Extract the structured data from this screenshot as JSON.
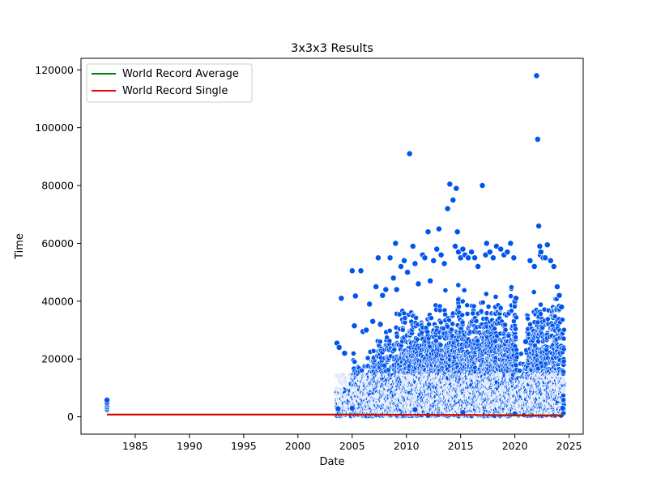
{
  "chart_data": {
    "type": "scatter",
    "title": "3x3x3 Results",
    "xlabel": "Date",
    "ylabel": "Time",
    "xlim": [
      1980.0,
      2026.3
    ],
    "ylim": [
      -6000,
      124000
    ],
    "xticks": [
      1985,
      1990,
      1995,
      2000,
      2005,
      2010,
      2015,
      2020,
      2025
    ],
    "xtick_labels": [
      "1985",
      "1990",
      "1995",
      "2000",
      "2005",
      "2010",
      "2015",
      "2020",
      "2025"
    ],
    "yticks": [
      0,
      20000,
      40000,
      60000,
      80000,
      100000,
      120000
    ],
    "ytick_labels": [
      "0",
      "20000",
      "40000",
      "60000",
      "80000",
      "100000",
      "120000"
    ],
    "grid": false,
    "legend_position": "upper-left",
    "series": [
      {
        "name": "World Record Average",
        "kind": "line",
        "color": "#008000",
        "x": [
          1982.4,
          2003.6,
          2005.0,
          2006.5,
          2007.5,
          2008.2,
          2009.0,
          2010.0,
          2011.5,
          2013.0,
          2014.5,
          2016.0,
          2017.8,
          2019.5,
          2020.5,
          2022.0,
          2023.5,
          2024.5
        ],
        "y": [
          800,
          800,
          800,
          780,
          760,
          750,
          740,
          730,
          720,
          700,
          680,
          650,
          620,
          600,
          580,
          550,
          520,
          500
        ]
      },
      {
        "name": "World Record Single",
        "kind": "line",
        "color": "#e60000",
        "x": [
          1982.4,
          2003.6,
          2005.0,
          2006.0,
          2007.5,
          2008.2,
          2009.5,
          2011.0,
          2013.0,
          2015.0,
          2016.5,
          2018.0,
          2019.5,
          2020.5,
          2023.5,
          2024.5
        ],
        "y": [
          760,
          760,
          760,
          750,
          740,
          730,
          710,
          690,
          670,
          650,
          600,
          540,
          480,
          460,
          350,
          340
        ]
      },
      {
        "name": "",
        "kind": "scatter",
        "color": "#0055ee",
        "x": [
          1982.4,
          1982.4,
          1982.4,
          1982.4,
          1982.4,
          1982.4,
          1982.4,
          2003.6,
          2003.8,
          2004.0,
          2004.3,
          2005.0,
          2005.2,
          2005.3,
          2005.8,
          2006.0,
          2006.3,
          2006.6,
          2006.9,
          2007.2,
          2007.4,
          2007.6,
          2007.8,
          2008.1,
          2008.5,
          2008.8,
          2009.0,
          2009.1,
          2009.5,
          2009.8,
          2010.1,
          2010.3,
          2010.6,
          2010.8,
          2011.1,
          2011.5,
          2011.7,
          2012.0,
          2012.2,
          2012.5,
          2012.8,
          2013.0,
          2013.2,
          2013.5,
          2013.8,
          2014.0,
          2014.3,
          2014.5,
          2014.6,
          2014.7,
          2014.8,
          2015.0,
          2015.2,
          2015.4,
          2015.7,
          2016.0,
          2016.3,
          2016.6,
          2017.0,
          2017.3,
          2017.4,
          2017.7,
          2018.0,
          2018.3,
          2018.7,
          2019.0,
          2019.3,
          2019.6,
          2019.9,
          2020.0,
          2020.1,
          2021.0,
          2021.4,
          2021.8,
          2022.0,
          2022.1,
          2022.2,
          2022.3,
          2022.35,
          2022.4,
          2022.6,
          2022.8,
          2023.0,
          2023.3,
          2023.6,
          2023.9,
          2024.1,
          2024.3,
          2024.4,
          2020.0,
          2015.2,
          2010.8,
          2005.0,
          2003.7,
          2012.0
        ],
        "y": [
          2500,
          3000,
          3500,
          4000,
          4500,
          5000,
          5800,
          25500,
          24000,
          41000,
          22000,
          50500,
          31500,
          41800,
          50500,
          29500,
          30000,
          39000,
          33000,
          45000,
          55000,
          32000,
          42000,
          44000,
          55000,
          48000,
          60000,
          44000,
          52000,
          54000,
          50000,
          91000,
          59000,
          53000,
          46000,
          56000,
          55000,
          64000,
          47000,
          54000,
          58000,
          65000,
          56000,
          53000,
          72000,
          80500,
          75000,
          59000,
          79000,
          64000,
          57000,
          55000,
          58000,
          56000,
          55000,
          57000,
          55000,
          52000,
          80000,
          56000,
          60000,
          57000,
          55000,
          59000,
          58000,
          56000,
          57000,
          60000,
          55000,
          40000,
          41000,
          26000,
          54000,
          52000,
          118000,
          96000,
          66000,
          59000,
          56000,
          57000,
          55000,
          55000,
          59500,
          54000,
          52000,
          45000,
          42000,
          38000,
          3000,
          1000,
          1500,
          2500,
          3000,
          2800,
          500
        ]
      }
    ]
  },
  "legend_border_color": "#cccccc",
  "marker_edge_color": "#ffffff"
}
